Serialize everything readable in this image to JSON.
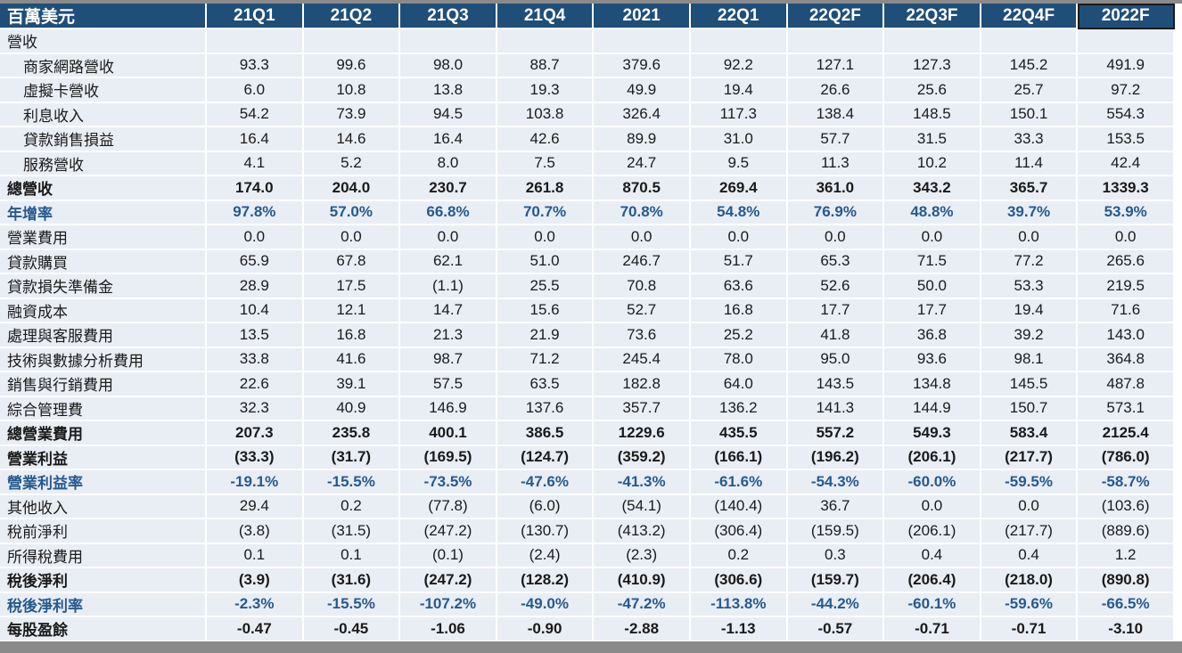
{
  "colors": {
    "header_bg": "#1f4e79",
    "header_text": "#ffffff",
    "body_bg": "#e9edf4",
    "gridline": "#ffffff",
    "ratio_text": "#255a8e",
    "text": "#1a1a1a",
    "frame_bar_gray": "#8a8a8a"
  },
  "chart_data": {
    "type": "table",
    "unit_label": "百萬美元",
    "columns": [
      "21Q1",
      "21Q2",
      "21Q3",
      "21Q4",
      "2021",
      "22Q1",
      "22Q2F",
      "22Q3F",
      "22Q4F",
      "2022F"
    ],
    "highlight_column": "2022F",
    "rows": [
      {
        "label": "營收",
        "style": "section",
        "indent": false,
        "values": [
          "",
          "",
          "",
          "",
          "",
          "",
          "",
          "",
          "",
          ""
        ]
      },
      {
        "label": "商家網路營收",
        "style": "normal",
        "indent": true,
        "values": [
          "93.3",
          "99.6",
          "98.0",
          "88.7",
          "379.6",
          "92.2",
          "127.1",
          "127.3",
          "145.2",
          "491.9"
        ]
      },
      {
        "label": "虛擬卡營收",
        "style": "normal",
        "indent": true,
        "values": [
          "6.0",
          "10.8",
          "13.8",
          "19.3",
          "49.9",
          "19.4",
          "26.6",
          "25.6",
          "25.7",
          "97.2"
        ]
      },
      {
        "label": "利息收入",
        "style": "normal",
        "indent": true,
        "values": [
          "54.2",
          "73.9",
          "94.5",
          "103.8",
          "326.4",
          "117.3",
          "138.4",
          "148.5",
          "150.1",
          "554.3"
        ]
      },
      {
        "label": "貸款銷售損益",
        "style": "normal",
        "indent": true,
        "values": [
          "16.4",
          "14.6",
          "16.4",
          "42.6",
          "89.9",
          "31.0",
          "57.7",
          "31.5",
          "33.3",
          "153.5"
        ]
      },
      {
        "label": "服務營收",
        "style": "normal",
        "indent": true,
        "values": [
          "4.1",
          "5.2",
          "8.0",
          "7.5",
          "24.7",
          "9.5",
          "11.3",
          "10.2",
          "11.4",
          "42.4"
        ]
      },
      {
        "label": "總營收",
        "style": "bold",
        "indent": false,
        "values": [
          "174.0",
          "204.0",
          "230.7",
          "261.8",
          "870.5",
          "269.4",
          "361.0",
          "343.2",
          "365.7",
          "1339.3"
        ]
      },
      {
        "label": "年增率",
        "style": "ratio",
        "indent": false,
        "values": [
          "97.8%",
          "57.0%",
          "66.8%",
          "70.7%",
          "70.8%",
          "54.8%",
          "76.9%",
          "48.8%",
          "39.7%",
          "53.9%"
        ]
      },
      {
        "label": "營業費用",
        "style": "normal",
        "indent": false,
        "values": [
          "0.0",
          "0.0",
          "0.0",
          "0.0",
          "0.0",
          "0.0",
          "0.0",
          "0.0",
          "0.0",
          "0.0"
        ]
      },
      {
        "label": "貸款購買",
        "style": "normal",
        "indent": false,
        "values": [
          "65.9",
          "67.8",
          "62.1",
          "51.0",
          "246.7",
          "51.7",
          "65.3",
          "71.5",
          "77.2",
          "265.6"
        ]
      },
      {
        "label": "貸款損失準備金",
        "style": "normal",
        "indent": false,
        "values": [
          "28.9",
          "17.5",
          "(1.1)",
          "25.5",
          "70.8",
          "63.6",
          "52.6",
          "50.0",
          "53.3",
          "219.5"
        ]
      },
      {
        "label": "融資成本",
        "style": "normal",
        "indent": false,
        "values": [
          "10.4",
          "12.1",
          "14.7",
          "15.6",
          "52.7",
          "16.8",
          "17.7",
          "17.7",
          "19.4",
          "71.6"
        ]
      },
      {
        "label": "處理與客服費用",
        "style": "normal",
        "indent": false,
        "values": [
          "13.5",
          "16.8",
          "21.3",
          "21.9",
          "73.6",
          "25.2",
          "41.8",
          "36.8",
          "39.2",
          "143.0"
        ]
      },
      {
        "label": "技術與數據分析費用",
        "style": "normal",
        "indent": false,
        "values": [
          "33.8",
          "41.6",
          "98.7",
          "71.2",
          "245.4",
          "78.0",
          "95.0",
          "93.6",
          "98.1",
          "364.8"
        ]
      },
      {
        "label": "銷售與行銷費用",
        "style": "normal",
        "indent": false,
        "values": [
          "22.6",
          "39.1",
          "57.5",
          "63.5",
          "182.8",
          "64.0",
          "143.5",
          "134.8",
          "145.5",
          "487.8"
        ]
      },
      {
        "label": "綜合管理費",
        "style": "normal",
        "indent": false,
        "values": [
          "32.3",
          "40.9",
          "146.9",
          "137.6",
          "357.7",
          "136.2",
          "141.3",
          "144.9",
          "150.7",
          "573.1"
        ]
      },
      {
        "label": "總營業費用",
        "style": "bold",
        "indent": false,
        "values": [
          "207.3",
          "235.8",
          "400.1",
          "386.5",
          "1229.6",
          "435.5",
          "557.2",
          "549.3",
          "583.4",
          "2125.4"
        ]
      },
      {
        "label": "營業利益",
        "style": "bold",
        "indent": false,
        "values": [
          "(33.3)",
          "(31.7)",
          "(169.5)",
          "(124.7)",
          "(359.2)",
          "(166.1)",
          "(196.2)",
          "(206.1)",
          "(217.7)",
          "(786.0)"
        ]
      },
      {
        "label": "營業利益率",
        "style": "ratio",
        "indent": false,
        "values": [
          "-19.1%",
          "-15.5%",
          "-73.5%",
          "-47.6%",
          "-41.3%",
          "-61.6%",
          "-54.3%",
          "-60.0%",
          "-59.5%",
          "-58.7%"
        ]
      },
      {
        "label": "其他收入",
        "style": "normal",
        "indent": false,
        "values": [
          "29.4",
          "0.2",
          "(77.8)",
          "(6.0)",
          "(54.1)",
          "(140.4)",
          "36.7",
          "0.0",
          "0.0",
          "(103.6)"
        ]
      },
      {
        "label": "稅前淨利",
        "style": "normal",
        "indent": false,
        "values": [
          "(3.8)",
          "(31.5)",
          "(247.2)",
          "(130.7)",
          "(413.2)",
          "(306.4)",
          "(159.5)",
          "(206.1)",
          "(217.7)",
          "(889.6)"
        ]
      },
      {
        "label": "所得稅費用",
        "style": "normal",
        "indent": false,
        "values": [
          "0.1",
          "0.1",
          "(0.1)",
          "(2.4)",
          "(2.3)",
          "0.2",
          "0.3",
          "0.4",
          "0.4",
          "1.2"
        ]
      },
      {
        "label": "稅後淨利",
        "style": "bold",
        "indent": false,
        "values": [
          "(3.9)",
          "(31.6)",
          "(247.2)",
          "(128.2)",
          "(410.9)",
          "(306.6)",
          "(159.7)",
          "(206.4)",
          "(218.0)",
          "(890.8)"
        ]
      },
      {
        "label": "稅後淨利率",
        "style": "ratio",
        "indent": false,
        "values": [
          "-2.3%",
          "-15.5%",
          "-107.2%",
          "-49.0%",
          "-47.2%",
          "-113.8%",
          "-44.2%",
          "-60.1%",
          "-59.6%",
          "-66.5%"
        ]
      },
      {
        "label": "每股盈餘",
        "style": "bold",
        "indent": false,
        "values": [
          "-0.47",
          "-0.45",
          "-1.06",
          "-0.90",
          "-2.88",
          "-1.13",
          "-0.57",
          "-0.71",
          "-0.71",
          "-3.10"
        ]
      }
    ]
  }
}
